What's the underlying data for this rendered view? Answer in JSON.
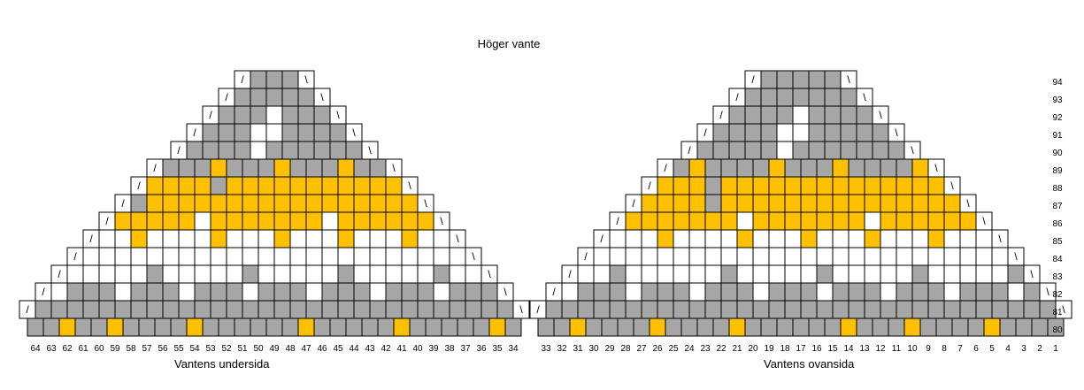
{
  "title": "Höger vante",
  "left_label": "Vantens undersida",
  "right_label": "Vantens ovansida",
  "row_numbers": [
    "94",
    "93",
    "92",
    "91",
    "90",
    "89",
    "88",
    "87",
    "86",
    "85",
    "84",
    "83",
    "82",
    "81",
    "80"
  ],
  "left_columns": [
    "64",
    "63",
    "62",
    "61",
    "60",
    "59",
    "58",
    "57",
    "56",
    "55",
    "54",
    "53",
    "52",
    "51",
    "50",
    "49",
    "48",
    "47",
    "46",
    "45",
    "44",
    "43",
    "42",
    "41",
    "40",
    "39",
    "38",
    "37",
    "36",
    "35",
    "34"
  ],
  "right_columns": [
    "33",
    "32",
    "31",
    "30",
    "29",
    "28",
    "27",
    "26",
    "25",
    "24",
    "23",
    "22",
    "21",
    "20",
    "19",
    "18",
    "17",
    "16",
    "15",
    "14",
    "13",
    "12",
    "11",
    "10",
    "9",
    "8",
    "7",
    "6",
    "5",
    "4",
    "3",
    "2",
    "1"
  ],
  "colors": {
    "gray": "#a6a6a6",
    "white": "#ffffff",
    "yellow": "#ffc000",
    "grid": "#000000"
  },
  "symbols": {
    "left_decrease": "/",
    "right_decrease": "\\"
  },
  "chart_data": {
    "type": "table",
    "legend_codes": {
      "G": "gray",
      "W": "white",
      "Y": "yellow"
    },
    "left_panel": {
      "94": "GGG",
      "93": "GGGGG",
      "92": "GGGWGGG",
      "91": "GGGWWGGGG",
      "90": "GGGGWGGGGGG",
      "89": "GGGYGGGYGGGYGG",
      "88": "YYYYGYYYYYYYYYYY",
      "87": "GYYYYYYYYYYYYYYYYY",
      "86": "YYYYYWYYYYYYYWYYYYYY",
      "85": "WWYWWWWYWWWYWWWYWWWYWW",
      "84": "WWWWWWWWWWWWWWWWWWWWWWWW",
      "83": "WWWWWGWWWWWGWWWWWGWWWWWGWW",
      "82": "WGGGWGGGWGGGWGGGWGGGWGGGWGGG",
      "81": "GGGGGGGGGGGGGGGGGGGGGGGGGGGGGG",
      "80": "GGYGGYGGGGYGGGGGGYGGGGGYGGGGGYG"
    },
    "right_panel": {
      "94": "GGGGG",
      "93": "GGGGGGG",
      "92": "GGGGWGGGG",
      "91": "GGGGWWGGGGG",
      "90": "GGGGGWGGGGGGG",
      "89": "GYGGGGYGGGYGGGGY",
      "88": "YYYGYYYYYYYYYYYYYY",
      "87": "YYYYGYYYYYYYYYYYYYYY",
      "86": "YYYYYYYWYYYYYYYWYYYYYY",
      "85": "WWWYWWWWYWWWYWWWYWWWYWWW",
      "84": "WWWWWWWWWWWWWWWWWWWWWWWWWW",
      "83": "WWGWWWWWWGWWWWWGWWWWWGWWWWWG",
      "82": "WGGGWGGGWGGGWGGGWGGGWGGGWGGGWG",
      "81": "GGGGGGGGGGGGGGGGGGGGGGGGGGGGGGGG",
      "80": "GGYGGGGYGGGGYGGGGGGYGGGYGGGGYGGGG"
    }
  }
}
